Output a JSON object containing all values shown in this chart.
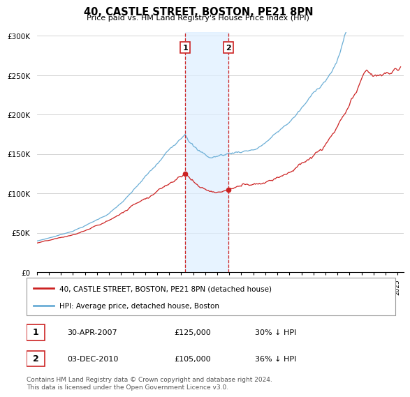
{
  "title": "40, CASTLE STREET, BOSTON, PE21 8PN",
  "subtitle": "Price paid vs. HM Land Registry's House Price Index (HPI)",
  "legend_label_red": "40, CASTLE STREET, BOSTON, PE21 8PN (detached house)",
  "legend_label_blue": "HPI: Average price, detached house, Boston",
  "footnote": "Contains HM Land Registry data © Crown copyright and database right 2024.\nThis data is licensed under the Open Government Licence v3.0.",
  "transaction1_date": "30-APR-2007",
  "transaction1_price": "£125,000",
  "transaction1_hpi": "30% ↓ HPI",
  "transaction2_date": "03-DEC-2010",
  "transaction2_price": "£105,000",
  "transaction2_hpi": "36% ↓ HPI",
  "hpi_color": "#6baed6",
  "price_color": "#cc2222",
  "shade_color": "#ddeeff",
  "vline_color": "#cc2222",
  "box_color": "#cc2222",
  "bg_color": "#ffffff",
  "grid_color": "#cccccc"
}
